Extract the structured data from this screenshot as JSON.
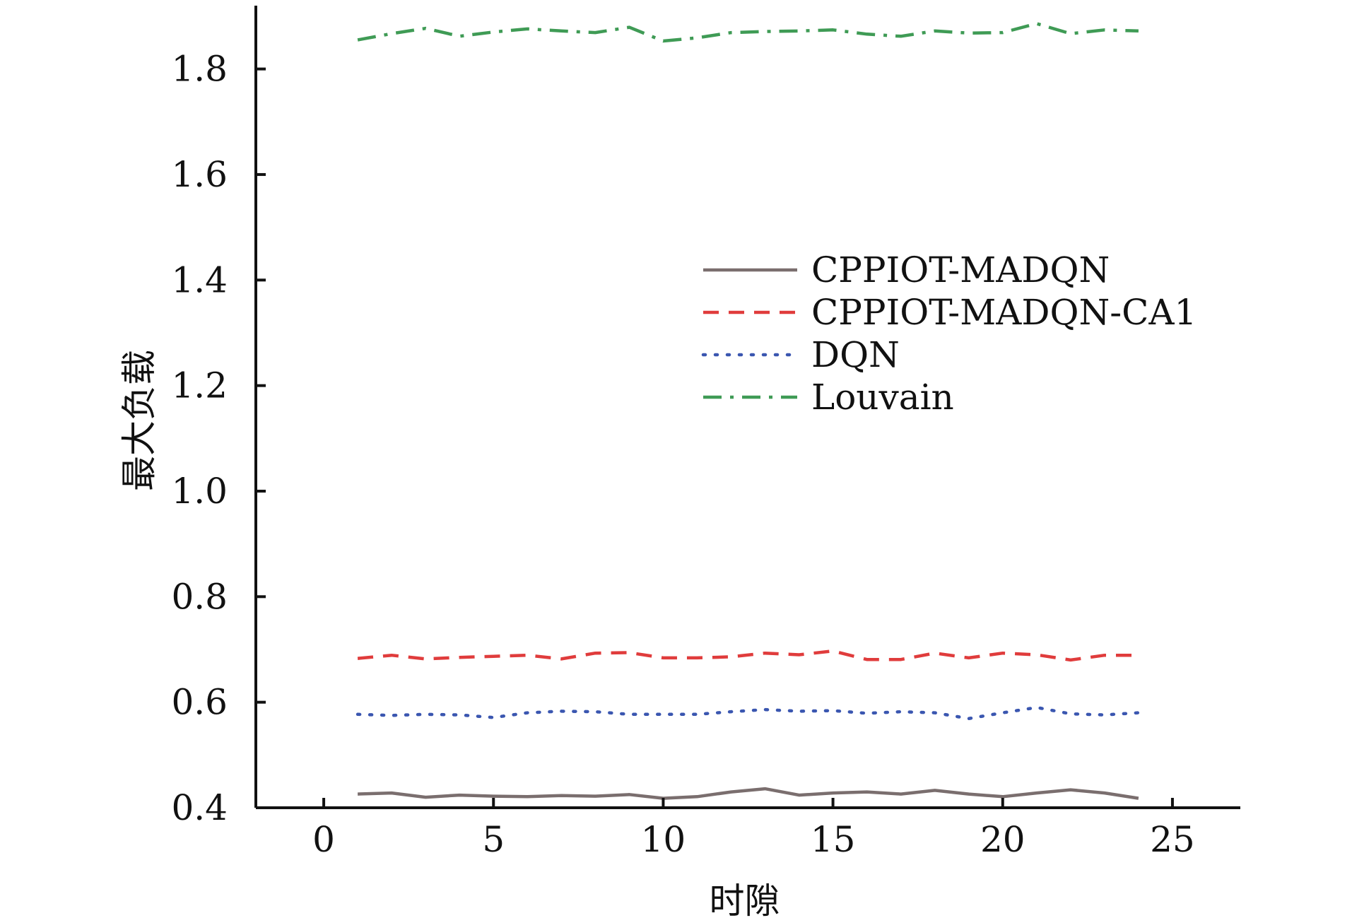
{
  "chart_data": {
    "type": "line",
    "xlabel": "时隙",
    "ylabel": "最大负载",
    "xlim": [
      -2,
      27
    ],
    "ylim": [
      0.4,
      1.92
    ],
    "xticks": [
      0,
      5,
      10,
      15,
      20,
      25
    ],
    "yticks": [
      0.4,
      0.6,
      0.8,
      1.0,
      1.2,
      1.4,
      1.6,
      1.8
    ],
    "ytick_labels": [
      "0.4",
      "0.6",
      "0.8",
      "1.0",
      "1.2",
      "1.4",
      "1.6",
      "1.8"
    ],
    "grid": false,
    "legend_position": "center-right",
    "x": [
      1,
      2,
      3,
      4,
      5,
      6,
      7,
      8,
      9,
      10,
      11,
      12,
      13,
      14,
      15,
      16,
      17,
      18,
      19,
      20,
      21,
      22,
      23,
      24
    ],
    "series": [
      {
        "name": "CPPIOT-MADQN",
        "color": "#7a6e6e",
        "style": "solid",
        "values": [
          0.426,
          0.428,
          0.42,
          0.424,
          0.422,
          0.421,
          0.423,
          0.422,
          0.425,
          0.418,
          0.421,
          0.43,
          0.436,
          0.424,
          0.428,
          0.43,
          0.426,
          0.433,
          0.426,
          0.421,
          0.428,
          0.434,
          0.428,
          0.418
        ]
      },
      {
        "name": "CPPIOT-MADQN-CA1",
        "color": "#e03c3c",
        "style": "dashed",
        "values": [
          0.683,
          0.689,
          0.682,
          0.685,
          0.687,
          0.689,
          0.682,
          0.693,
          0.694,
          0.684,
          0.684,
          0.686,
          0.693,
          0.69,
          0.697,
          0.681,
          0.681,
          0.693,
          0.684,
          0.693,
          0.69,
          0.68,
          0.689,
          0.689
        ]
      },
      {
        "name": "DQN",
        "color": "#3a56b0",
        "style": "dotted",
        "values": [
          0.577,
          0.575,
          0.577,
          0.576,
          0.571,
          0.58,
          0.583,
          0.582,
          0.577,
          0.577,
          0.577,
          0.582,
          0.586,
          0.583,
          0.584,
          0.579,
          0.582,
          0.58,
          0.569,
          0.58,
          0.59,
          0.578,
          0.576,
          0.58
        ]
      },
      {
        "name": "Louvain",
        "color": "#3f9b55",
        "style": "dashdot",
        "values": [
          1.855,
          1.867,
          1.877,
          1.862,
          1.87,
          1.876,
          1.872,
          1.869,
          1.879,
          1.853,
          1.859,
          1.869,
          1.871,
          1.872,
          1.874,
          1.866,
          1.862,
          1.872,
          1.868,
          1.869,
          1.886,
          1.867,
          1.874,
          1.872
        ]
      }
    ]
  }
}
